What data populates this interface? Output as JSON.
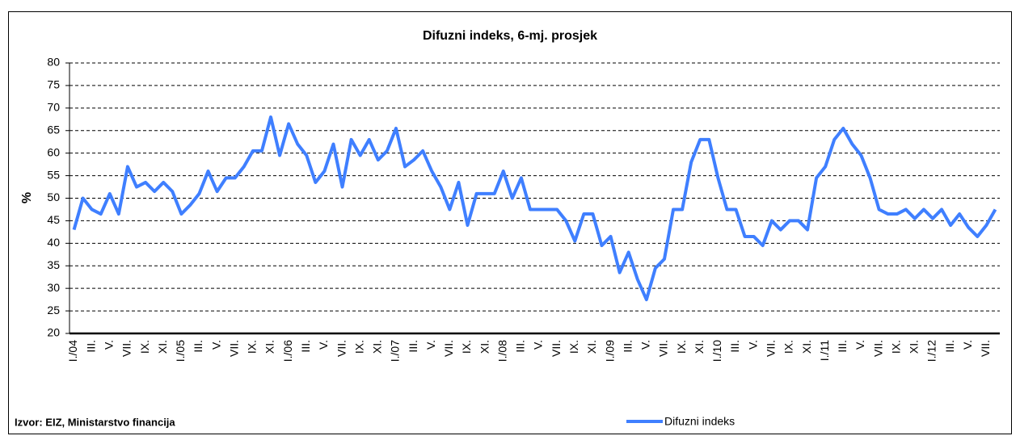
{
  "chart_data": {
    "type": "line",
    "title": "Difuzni indeks, 6-mj. prosjek",
    "y_label": "%",
    "source": "Izvor: EIZ, Ministarstvo financija",
    "categories": [
      "I./04",
      null,
      "III.",
      null,
      "V.",
      null,
      "VII.",
      null,
      "IX.",
      null,
      "XI.",
      null,
      "I./05",
      null,
      "III.",
      null,
      "V.",
      null,
      "VII.",
      null,
      "IX.",
      null,
      "XI.",
      null,
      "I./06",
      null,
      "III.",
      null,
      "V.",
      null,
      "VII.",
      null,
      "IX.",
      null,
      "XI.",
      null,
      "I./07",
      null,
      "III.",
      null,
      "V.",
      null,
      "VII.",
      null,
      "IX.",
      null,
      "XI.",
      null,
      "I./08",
      null,
      "III.",
      null,
      "V.",
      null,
      "VII.",
      null,
      "IX.",
      null,
      "XI.",
      null,
      "I./09",
      null,
      "III.",
      null,
      "V.",
      null,
      "VII.",
      null,
      "IX.",
      null,
      "XI.",
      null,
      "I./10",
      null,
      "III.",
      null,
      "V.",
      null,
      "VII.",
      null,
      "IX.",
      null,
      "XI.",
      null,
      "I./11",
      null,
      "III.",
      null,
      "V.",
      null,
      "VII.",
      null,
      "IX.",
      null,
      "XI.",
      null,
      "I./12",
      null,
      "III.",
      null,
      "V.",
      null,
      "VII.",
      null
    ],
    "series": [
      {
        "name": "Difuzni indeks",
        "color": "#3f7fff",
        "values": [
          43,
          50,
          47.5,
          46.5,
          51,
          46.5,
          57,
          52.5,
          53.5,
          51.5,
          53.5,
          51.5,
          46.5,
          48.5,
          51,
          56,
          51.5,
          54.5,
          54.5,
          57,
          60.5,
          60.5,
          68,
          59.5,
          66.5,
          62,
          59.5,
          53.5,
          56,
          62,
          52.5,
          63,
          59.5,
          63,
          58.5,
          60.5,
          65.5,
          57,
          58.5,
          60.5,
          56,
          52.5,
          47.5,
          53.5,
          44,
          51,
          51,
          51,
          56,
          50,
          54.5,
          47.5,
          47.5,
          47.5,
          47.5,
          45,
          40.5,
          46.5,
          46.5,
          39.5,
          41.5,
          33.5,
          38,
          32,
          27.5,
          34.5,
          36.5,
          47.5,
          47.5,
          58,
          63,
          63,
          54.5,
          47.5,
          47.5,
          41.5,
          41.5,
          39.5,
          45,
          43,
          45,
          45,
          43,
          54.5,
          57,
          63,
          65.5,
          62,
          59.5,
          54.5,
          47.5,
          46.5,
          46.5,
          47.5,
          45.5,
          47.5,
          45.5,
          47.5,
          44,
          46.5,
          43.5,
          41.5,
          44,
          47.5
        ]
      }
    ],
    "ylim": [
      20,
      80
    ],
    "yticks": [
      20,
      25,
      30,
      35,
      40,
      45,
      50,
      55,
      60,
      65,
      70,
      75,
      80
    ],
    "grid": true,
    "legend": "bottom-right"
  }
}
